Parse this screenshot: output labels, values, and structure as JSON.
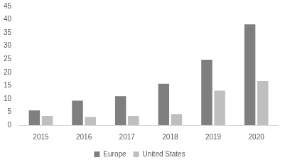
{
  "chart_data": {
    "type": "bar",
    "categories": [
      "2015",
      "2016",
      "2017",
      "2018",
      "2019",
      "2020"
    ],
    "series": [
      {
        "name": "Europe",
        "color": "#7f7f7f",
        "values": [
          5.6,
          9.3,
          11,
          15.7,
          24.8,
          38.2
        ]
      },
      {
        "name": "United States",
        "color": "#bfbfbf",
        "values": [
          3.5,
          3.1,
          3.5,
          4.2,
          13.1,
          16.7
        ]
      }
    ],
    "ylim": [
      0,
      45
    ],
    "yticks": [
      0,
      5,
      10,
      15,
      20,
      25,
      30,
      35,
      40,
      45
    ],
    "grid": false,
    "legend": "bottom"
  }
}
